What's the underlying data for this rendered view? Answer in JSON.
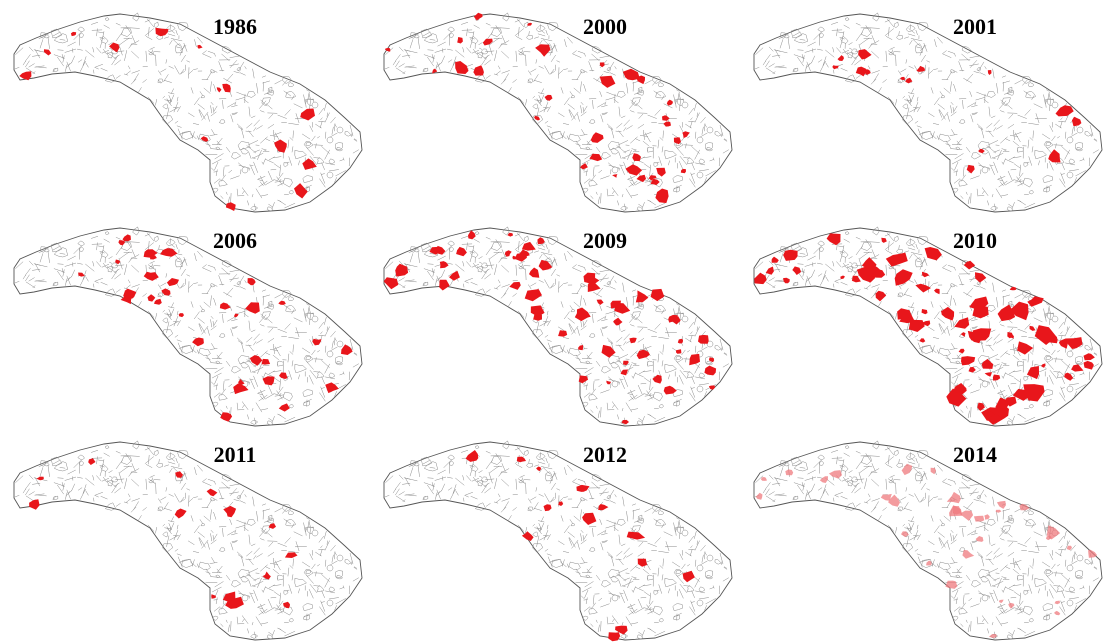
{
  "figure": {
    "style": {
      "outline_color": "#555555",
      "parcel_color": "#8a8a8a",
      "highlight_color": "#e8161b",
      "highlight_faded_color": "#ef7a7d"
    },
    "panels": [
      {
        "id": "p1986",
        "year": "1986",
        "highlight_level": "low",
        "faded": false
      },
      {
        "id": "p2000",
        "year": "2000",
        "highlight_level": "medium",
        "faded": false
      },
      {
        "id": "p2001",
        "year": "2001",
        "highlight_level": "low",
        "faded": false
      },
      {
        "id": "p2006",
        "year": "2006",
        "highlight_level": "medium",
        "faded": false
      },
      {
        "id": "p2009",
        "year": "2009",
        "highlight_level": "high",
        "faded": false
      },
      {
        "id": "p2010",
        "year": "2010",
        "highlight_level": "very-high",
        "faded": false
      },
      {
        "id": "p2011",
        "year": "2011",
        "highlight_level": "low",
        "faded": false
      },
      {
        "id": "p2012",
        "year": "2012",
        "highlight_level": "low",
        "faded": false
      },
      {
        "id": "p2014",
        "year": "2014",
        "highlight_level": "medium",
        "faded": true
      }
    ]
  }
}
